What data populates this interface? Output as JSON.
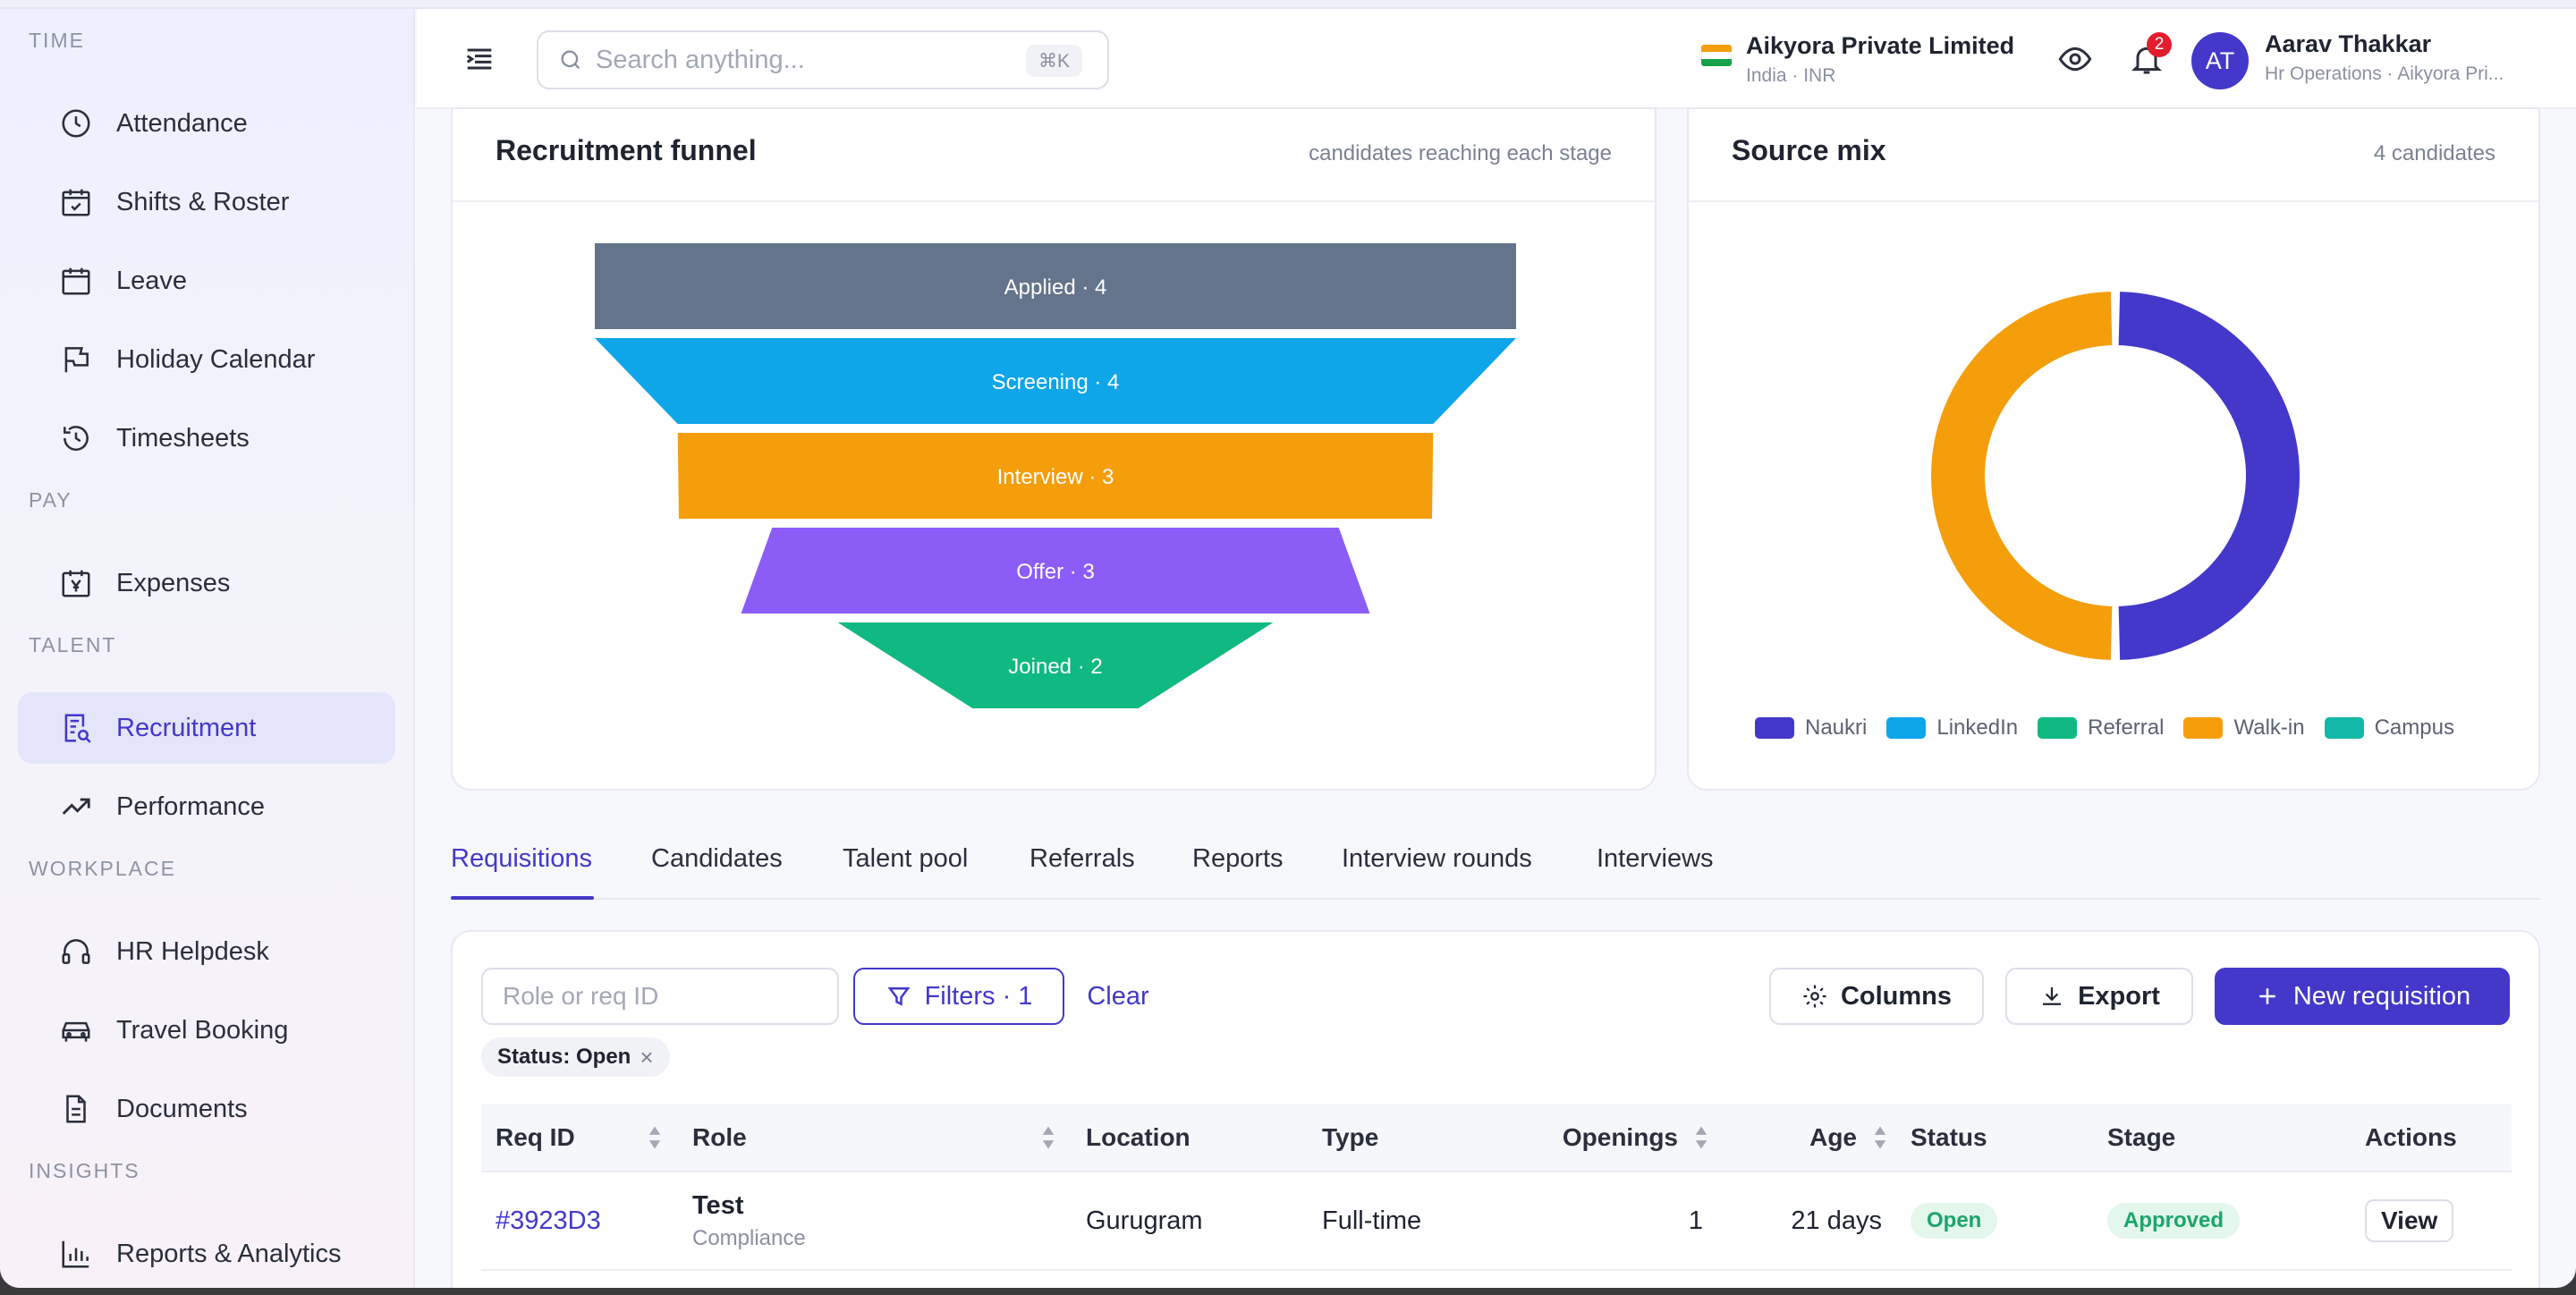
{
  "sidebar": {
    "sections": [
      {
        "label": "TIME",
        "items": [
          {
            "label": "Attendance",
            "icon": "clock-icon"
          },
          {
            "label": "Shifts & Roster",
            "icon": "calendar-check-icon"
          },
          {
            "label": "Leave",
            "icon": "calendar-icon"
          },
          {
            "label": "Holiday Calendar",
            "icon": "flag-icon"
          },
          {
            "label": "Timesheets",
            "icon": "history-clock-icon"
          }
        ]
      },
      {
        "label": "PAY",
        "items": [
          {
            "label": "Expenses",
            "icon": "yen-receipt-icon"
          }
        ]
      },
      {
        "label": "TALENT",
        "items": [
          {
            "label": "Recruitment",
            "icon": "resume-search-icon",
            "active": true
          },
          {
            "label": "Performance",
            "icon": "trend-up-icon"
          }
        ]
      },
      {
        "label": "WORKPLACE",
        "items": [
          {
            "label": "HR Helpdesk",
            "icon": "headset-icon"
          },
          {
            "label": "Travel Booking",
            "icon": "car-icon"
          },
          {
            "label": "Documents",
            "icon": "document-icon"
          }
        ]
      },
      {
        "label": "INSIGHTS",
        "items": [
          {
            "label": "Reports & Analytics",
            "icon": "bar-chart-icon"
          }
        ]
      }
    ]
  },
  "header": {
    "search_placeholder": "Search anything...",
    "search_shortcut": "⌘K",
    "company_name": "Aikyora Private Limited",
    "company_sub": "India · INR",
    "notification_count": "2",
    "avatar_initials": "AT",
    "user_name": "Aarav Thakkar",
    "user_sub": "Hr Operations · Aikyora Pri..."
  },
  "funnel_card": {
    "title": "Recruitment funnel",
    "meta": "candidates reaching each stage"
  },
  "source_card": {
    "title": "Source mix",
    "meta": "4 candidates"
  },
  "chart_data": [
    {
      "type": "funnel",
      "categories": [
        "Applied",
        "Screening",
        "Interview",
        "Offer",
        "Joined"
      ],
      "values": [
        4,
        4,
        3,
        3,
        2
      ],
      "labels": [
        "Applied · 4",
        "Screening · 4",
        "Interview · 3",
        "Offer · 3",
        "Joined · 2"
      ],
      "colors": [
        "#64748b",
        "#0ea5e9",
        "#f59e0b",
        "#8b5cf6",
        "#10b981"
      ]
    },
    {
      "type": "pie",
      "categories": [
        "Naukri",
        "LinkedIn",
        "Referral",
        "Walk-in",
        "Campus"
      ],
      "values": [
        2,
        0,
        0,
        2,
        0
      ],
      "colors": [
        "#4338ca",
        "#0ea5e9",
        "#10b981",
        "#f59e0b",
        "#14b8a6"
      ],
      "donut": true,
      "legend": "bottom"
    }
  ],
  "tabs": [
    "Requisitions",
    "Candidates",
    "Talent pool",
    "Referrals",
    "Reports",
    "Interview rounds",
    "Interviews"
  ],
  "toolbar": {
    "filter_placeholder": "Role or req ID",
    "filters_label": "Filters · 1",
    "clear_label": "Clear",
    "columns_label": "Columns",
    "export_label": "Export",
    "new_label": "New requisition",
    "chip_label": "Status: Open",
    "chip_remove": "×"
  },
  "table": {
    "headers": [
      "Req ID",
      "Role",
      "Location",
      "Type",
      "Openings",
      "Age",
      "Status",
      "Stage",
      "Actions"
    ],
    "rows": [
      {
        "req_id": "#3923D3",
        "role": "Test",
        "department": "Compliance",
        "location": "Gurugram",
        "type": "Full-time",
        "openings": "1",
        "age": "21 days",
        "status": "Open",
        "stage": "Approved",
        "action": "View"
      }
    ]
  },
  "colors": {
    "accent": "#4338ca",
    "success": "#1aa56a",
    "badge": "#e11d2e"
  }
}
